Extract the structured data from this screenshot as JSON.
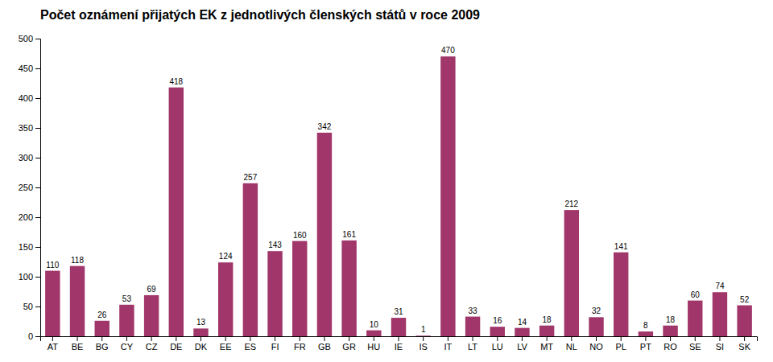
{
  "chart_data": {
    "type": "bar",
    "title": "Počet oznámení přijatých EK z jednotlivých členských států v roce 2009",
    "categories": [
      "AT",
      "BE",
      "BG",
      "CY",
      "CZ",
      "DE",
      "DK",
      "EE",
      "ES",
      "FI",
      "FR",
      "GB",
      "GR",
      "HU",
      "IE",
      "IS",
      "IT",
      "LT",
      "LU",
      "LV",
      "MT",
      "NL",
      "NO",
      "PL",
      "PT",
      "RO",
      "SE",
      "SI",
      "SK"
    ],
    "values": [
      110,
      118,
      26,
      53,
      69,
      418,
      13,
      124,
      257,
      143,
      160,
      342,
      161,
      10,
      31,
      1,
      470,
      33,
      16,
      14,
      18,
      212,
      32,
      141,
      8,
      18,
      60,
      74,
      52
    ],
    "color": "#A0366A",
    "ylim": [
      0,
      500
    ],
    "yticks": [
      0,
      50,
      100,
      150,
      200,
      250,
      300,
      350,
      400,
      450,
      500
    ],
    "data_labels": true,
    "grid": false
  }
}
